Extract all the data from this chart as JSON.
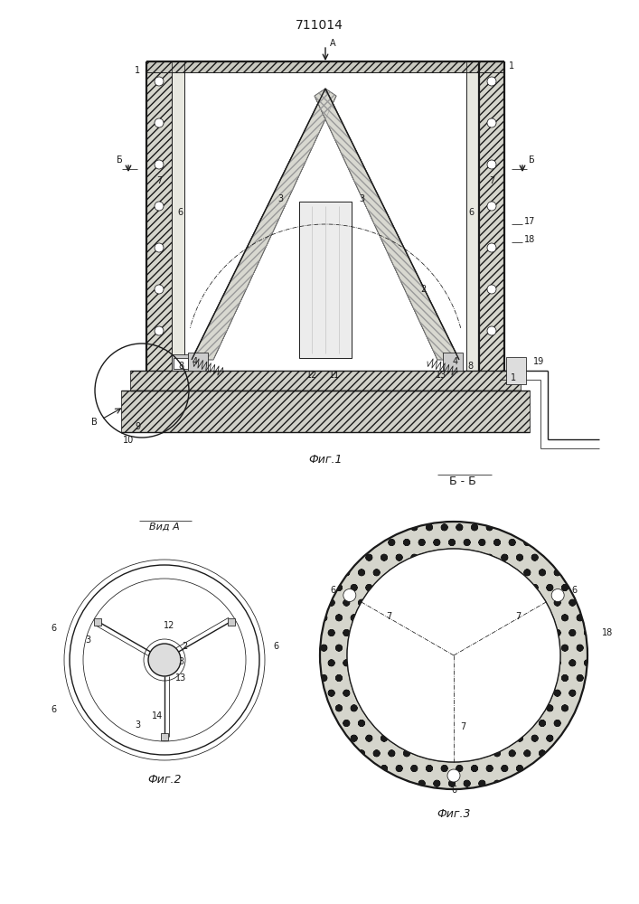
{
  "title": "711014",
  "fig1_caption": "Фиг.1",
  "fig2_caption": "Фиг.2",
  "fig3_caption": "Фиг.3",
  "vid_a_label": "Вид А",
  "bb_label": "Б - Б",
  "lc": "#1a1a1a",
  "lw_main": 1.0,
  "lw_thin": 0.55,
  "lw_thick": 1.6
}
